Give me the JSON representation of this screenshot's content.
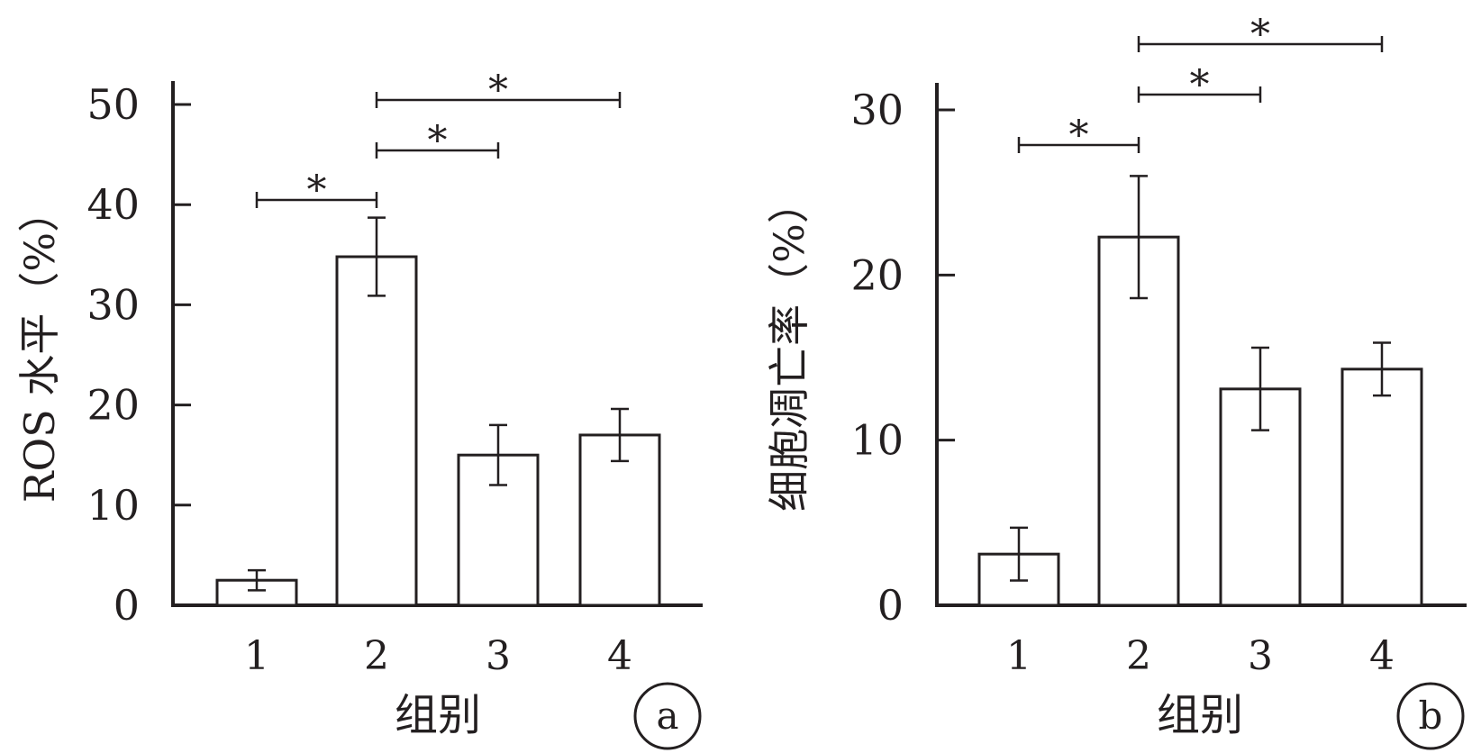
{
  "chart_data": [
    {
      "type": "bar",
      "panel_label": "a",
      "categories": [
        "1",
        "2",
        "3",
        "4"
      ],
      "values": [
        2.5,
        34.8,
        15.0,
        17.0
      ],
      "errors": [
        1.0,
        3.9,
        3.0,
        2.6
      ],
      "xlabel": "组别",
      "ylabel": "ROS 水平（%）",
      "ylim": [
        0,
        50
      ],
      "yticks": [
        0,
        10,
        20,
        30,
        40,
        50
      ],
      "significance": [
        {
          "from": "1",
          "to": "2",
          "label": "*"
        },
        {
          "from": "2",
          "to": "3",
          "label": "*"
        },
        {
          "from": "2",
          "to": "4",
          "label": "*"
        }
      ]
    },
    {
      "type": "bar",
      "panel_label": "b",
      "categories": [
        "1",
        "2",
        "3",
        "4"
      ],
      "values": [
        3.1,
        22.3,
        13.1,
        14.3
      ],
      "errors": [
        1.6,
        3.7,
        2.5,
        1.6
      ],
      "xlabel": "组别",
      "ylabel": "细胞凋亡率（%）",
      "ylim": [
        0,
        30
      ],
      "yticks": [
        0,
        10,
        20,
        30
      ],
      "significance": [
        {
          "from": "1",
          "to": "2",
          "label": "*"
        },
        {
          "from": "2",
          "to": "3",
          "label": "*"
        },
        {
          "from": "2",
          "to": "4",
          "label": "*"
        }
      ]
    }
  ]
}
